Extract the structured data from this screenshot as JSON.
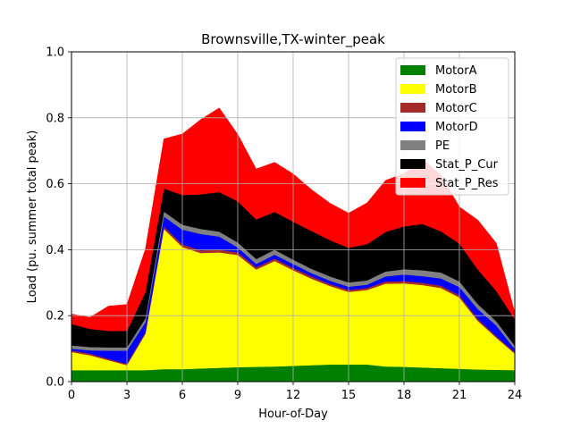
{
  "chart_data": {
    "type": "area",
    "stacked": true,
    "title": "Brownsville,TX-winter_peak",
    "xlabel": "Hour-of-Day",
    "ylabel": "Load (pu. summer total peak)",
    "xlim": [
      0,
      24
    ],
    "ylim": [
      0,
      1.0
    ],
    "xticks": [
      "0",
      "3",
      "6",
      "9",
      "12",
      "15",
      "18",
      "21",
      "24"
    ],
    "yticks": [
      "0.0",
      "0.2",
      "0.4",
      "0.6",
      "0.8",
      "1.0"
    ],
    "grid": true,
    "legend_position": "top-right",
    "x": [
      0,
      1,
      2,
      3,
      4,
      5,
      6,
      7,
      8,
      9,
      10,
      11,
      12,
      13,
      14,
      15,
      16,
      17,
      18,
      19,
      20,
      21,
      22,
      23,
      24
    ],
    "series": [
      {
        "name": "MotorA",
        "color": "#008000",
        "values": [
          0.035,
          0.035,
          0.035,
          0.035,
          0.035,
          0.038,
          0.038,
          0.04,
          0.042,
          0.044,
          0.045,
          0.046,
          0.048,
          0.05,
          0.052,
          0.052,
          0.052,
          0.046,
          0.045,
          0.043,
          0.041,
          0.039,
          0.037,
          0.036,
          0.035
        ]
      },
      {
        "name": "MotorB",
        "color": "#ffff00",
        "values": [
          0.055,
          0.045,
          0.03,
          0.015,
          0.11,
          0.425,
          0.37,
          0.35,
          0.35,
          0.34,
          0.295,
          0.32,
          0.29,
          0.262,
          0.238,
          0.22,
          0.226,
          0.251,
          0.253,
          0.25,
          0.243,
          0.216,
          0.147,
          0.097,
          0.05
        ]
      },
      {
        "name": "MotorC",
        "color": "#a52a2a",
        "values": [
          0.005,
          0.005,
          0.004,
          0.004,
          0.005,
          0.008,
          0.008,
          0.008,
          0.008,
          0.008,
          0.007,
          0.007,
          0.007,
          0.007,
          0.006,
          0.006,
          0.006,
          0.007,
          0.007,
          0.007,
          0.007,
          0.007,
          0.006,
          0.005,
          0.004
        ]
      },
      {
        "name": "MotorD",
        "color": "#0000ff",
        "values": [
          0.005,
          0.01,
          0.025,
          0.04,
          0.03,
          0.03,
          0.045,
          0.05,
          0.04,
          0.015,
          0.01,
          0.012,
          0.012,
          0.01,
          0.01,
          0.01,
          0.01,
          0.015,
          0.02,
          0.02,
          0.022,
          0.025,
          0.03,
          0.032,
          0.01
        ]
      },
      {
        "name": "PE",
        "color": "#808080",
        "values": [
          0.01,
          0.01,
          0.01,
          0.01,
          0.012,
          0.015,
          0.015,
          0.015,
          0.015,
          0.015,
          0.015,
          0.015,
          0.013,
          0.013,
          0.013,
          0.013,
          0.013,
          0.015,
          0.016,
          0.018,
          0.018,
          0.017,
          0.015,
          0.013,
          0.01
        ]
      },
      {
        "name": "Stat_P_Cur",
        "color": "#000000",
        "values": [
          0.065,
          0.055,
          0.05,
          0.05,
          0.08,
          0.07,
          0.09,
          0.105,
          0.12,
          0.125,
          0.12,
          0.115,
          0.115,
          0.115,
          0.11,
          0.105,
          0.11,
          0.12,
          0.13,
          0.14,
          0.125,
          0.115,
          0.105,
          0.092,
          0.08
        ]
      },
      {
        "name": "Stat_P_Res",
        "color": "#ff0000",
        "values": [
          0.03,
          0.035,
          0.075,
          0.08,
          0.13,
          0.15,
          0.185,
          0.227,
          0.255,
          0.203,
          0.153,
          0.15,
          0.145,
          0.125,
          0.112,
          0.105,
          0.125,
          0.156,
          0.16,
          0.198,
          0.17,
          0.111,
          0.15,
          0.145,
          0.02
        ]
      }
    ]
  }
}
